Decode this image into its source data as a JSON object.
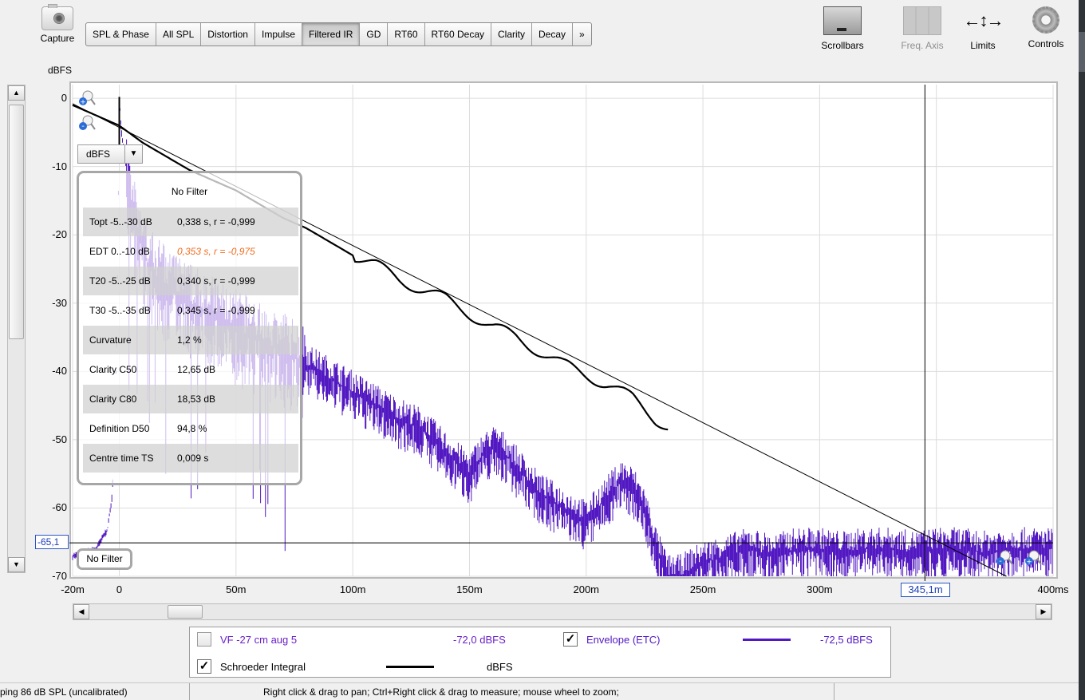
{
  "toolbar": {
    "capture_label": "Capture",
    "tabs": [
      {
        "label": "SPL & Phase",
        "active": false
      },
      {
        "label": "All SPL",
        "active": false
      },
      {
        "label": "Distortion",
        "active": false
      },
      {
        "label": "Impulse",
        "active": false
      },
      {
        "label": "Filtered IR",
        "active": true
      },
      {
        "label": "GD",
        "active": false
      },
      {
        "label": "RT60",
        "active": false
      },
      {
        "label": "RT60 Decay",
        "active": false
      },
      {
        "label": "Clarity",
        "active": false
      },
      {
        "label": "Decay",
        "active": false
      },
      {
        "label": "»",
        "active": false
      }
    ],
    "tools": {
      "scrollbars": "Scrollbars",
      "freq_axis": "Freq. Axis",
      "limits": "Limits",
      "controls": "Controls"
    }
  },
  "graph": {
    "y_unit": "dBFS",
    "unit_select": "dBFS",
    "cursor_y": "-65,1",
    "cursor_x": "345,1m",
    "filter_tag": "No Filter"
  },
  "filter_panel": {
    "title": "No Filter",
    "rows": [
      {
        "key": "Topt -5..-30 dB",
        "value": "0,338 s,  r = -0,999",
        "warn": false
      },
      {
        "key": "EDT  0..-10 dB",
        "value": "0,353 s, r = -0,975",
        "warn": true
      },
      {
        "key": "T20 -5..-25 dB",
        "value": "0,340 s,  r = -0,999",
        "warn": false
      },
      {
        "key": "T30 -5..-35 dB",
        "value": "0,345 s,  r = -0,999",
        "warn": false
      },
      {
        "key": "Curvature",
        "value": "1,2 %",
        "warn": false
      },
      {
        "key": "Clarity C50",
        "value": "12,65 dB",
        "warn": false
      },
      {
        "key": "Clarity C80",
        "value": "18,53 dB",
        "warn": false
      },
      {
        "key": "Definition D50",
        "value": "94,8 %",
        "warn": false
      },
      {
        "key": "Centre time TS",
        "value": "0,009 s",
        "warn": false
      }
    ]
  },
  "legend": {
    "items": [
      {
        "name": "VF -27 cm aug 5",
        "value": "-72,0 dBFS",
        "checked": false,
        "color": "#6a1fc6"
      },
      {
        "name": "Envelope (ETC)",
        "value": "-72,5 dBFS",
        "checked": true,
        "color": "#5218c2"
      },
      {
        "name": "Schroeder Integral",
        "value": "dBFS",
        "checked": true,
        "color": "#000000"
      }
    ]
  },
  "status": {
    "left": "ping 86 dB SPL (uncalibrated)",
    "center": "Right click & drag to pan; Ctrl+Right click & drag to measure; mouse wheel to zoom;"
  },
  "chart_data": {
    "type": "line",
    "xlabel": "",
    "ylabel": "dBFS",
    "xlim": [
      -20,
      400
    ],
    "ylim": [
      -70,
      2
    ],
    "x_ticks": [
      "-20m",
      "0",
      "50m",
      "100m",
      "150m",
      "200m",
      "250m",
      "300m",
      "350m",
      "400ms"
    ],
    "x_tick_values": [
      -20,
      0,
      50,
      100,
      150,
      200,
      250,
      300,
      350,
      400
    ],
    "y_ticks": [
      "0",
      "-10",
      "-20",
      "-30",
      "-40",
      "-50",
      "-60",
      "-70"
    ],
    "y_tick_values": [
      0,
      -10,
      -20,
      -30,
      -40,
      -50,
      -60,
      -70
    ],
    "grid": true,
    "cursor": {
      "x": 345.1,
      "y": -65.1
    },
    "series": [
      {
        "name": "Envelope (ETC)",
        "color": "#5218c2",
        "x": [
          -20,
          -10,
          -5,
          -3,
          -1,
          0,
          1,
          3,
          5,
          8,
          12,
          18,
          25,
          30,
          40,
          50,
          60,
          70,
          80,
          90,
          100,
          110,
          120,
          130,
          140,
          150,
          155,
          160,
          165,
          170,
          180,
          190,
          200,
          205,
          210,
          215,
          220,
          225,
          230,
          235,
          240,
          250,
          260,
          270,
          280,
          290,
          300,
          310,
          320,
          330,
          340,
          350,
          360,
          370,
          380,
          390,
          400
        ],
        "y": [
          -67,
          -66,
          -63,
          -58,
          -35,
          0,
          -5,
          -10,
          -16,
          -20,
          -24,
          -27,
          -29,
          -30,
          -32,
          -34,
          -35.5,
          -37,
          -39,
          -41,
          -43,
          -45,
          -47,
          -48.5,
          -52,
          -55,
          -52.5,
          -51,
          -52,
          -54,
          -58,
          -60,
          -62,
          -60,
          -58,
          -56,
          -57,
          -60,
          -66,
          -70,
          -70,
          -68,
          -67,
          -66,
          -67,
          -66,
          -66,
          -66.5,
          -66,
          -66,
          -66.5,
          -66,
          -66,
          -66.5,
          -66,
          -66,
          -66
        ]
      },
      {
        "name": "Schroeder Integral",
        "color": "#000000",
        "x": [
          -20,
          -10,
          0,
          10,
          20,
          30,
          40,
          50,
          60,
          70,
          80,
          90,
          100,
          110,
          120,
          130,
          140,
          150,
          160,
          170,
          180,
          190,
          200,
          210,
          215,
          220,
          225,
          230,
          235
        ],
        "y": [
          -1,
          -2.5,
          -4,
          -6.5,
          -8.5,
          -10.5,
          -12,
          -13.5,
          -15.5,
          -17.5,
          -19,
          -21,
          -23,
          -24.5,
          -26.5,
          -28,
          -29.5,
          -31.5,
          -33.5,
          -35,
          -37,
          -39,
          -40.5,
          -42,
          -43,
          -44,
          -45.5,
          -47,
          -48
        ]
      },
      {
        "name": "T30 fit",
        "color": "#000000",
        "x": [
          -20,
          380
        ],
        "y": [
          -0.8,
          -70
        ]
      }
    ]
  }
}
